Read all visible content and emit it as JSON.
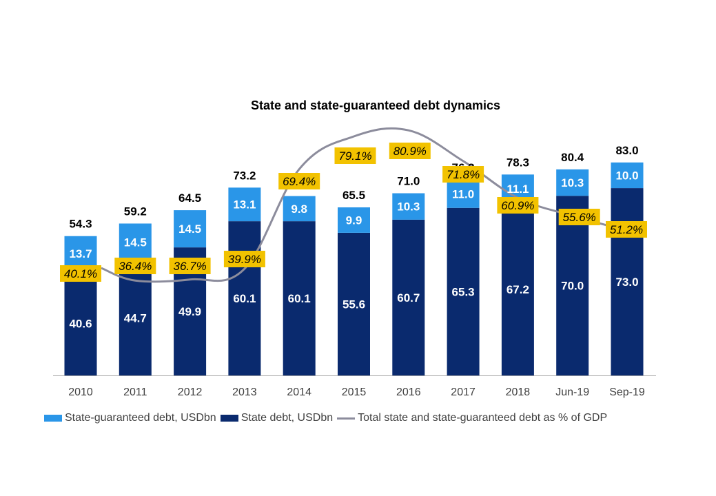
{
  "chart_data": {
    "type": "bar",
    "title": "State and state-guaranteed debt dynamics",
    "categories": [
      "2010",
      "2011",
      "2012",
      "2013",
      "2014",
      "2015",
      "2016",
      "2017",
      "2018",
      "Jun-19",
      "Sep-19"
    ],
    "series": [
      {
        "name": "State debt, USDbn",
        "kind": "stacked-bar",
        "color": "#0a2a6e",
        "values": [
          40.6,
          44.7,
          49.9,
          60.1,
          60.1,
          55.6,
          60.7,
          65.3,
          67.2,
          70.0,
          73.0
        ]
      },
      {
        "name": "State-guaranteed debt, USDbn",
        "kind": "stacked-bar",
        "color": "#2a96e8",
        "values": [
          13.7,
          14.5,
          14.5,
          13.1,
          9.8,
          9.9,
          10.3,
          11.0,
          11.1,
          10.3,
          10.0
        ]
      },
      {
        "name": "Total state and state-guaranteed debt as % of GDP",
        "kind": "line",
        "color": "#8c8c9c",
        "values": [
          40.1,
          36.4,
          36.7,
          39.9,
          69.4,
          79.1,
          80.9,
          71.8,
          60.9,
          55.6,
          51.2
        ]
      }
    ],
    "totals": [
      54.3,
      59.2,
      64.5,
      73.2,
      69.9,
      65.5,
      71.0,
      76.3,
      78.3,
      80.4,
      83.0
    ],
    "total_labels": [
      "54.3",
      "59.2",
      "64.5",
      "73.2",
      "",
      "65.5",
      "71.0",
      "76.3",
      "78.3",
      "80.4",
      "83.0"
    ],
    "state_labels": [
      "40.6",
      "44.7",
      "49.9",
      "60.1",
      "60.1",
      "55.6",
      "60.7",
      "65.3",
      "67.2",
      "70.0",
      "73.0"
    ],
    "guaranteed_labels": [
      "13.7",
      "14.5",
      "14.5",
      "13.1",
      "9.8",
      "9.9",
      "10.3",
      "11.0",
      "11.1",
      "10.3",
      "10.0"
    ],
    "pct_labels": [
      "40.1%",
      "36.4%",
      "36.7%",
      "39.9%",
      "69.4%",
      "79.1%",
      "80.9%",
      "71.8%",
      "60.9%",
      "55.6%",
      "51.2%"
    ],
    "pct_label_color": "#f2c200",
    "legend_position": "bottom",
    "legend": [
      "State-guaranteed debt, USDbn",
      "State debt, USDbn",
      "Total state and state-guaranteed debt as % of GDP"
    ],
    "xlabel": "",
    "ylabel": ""
  }
}
